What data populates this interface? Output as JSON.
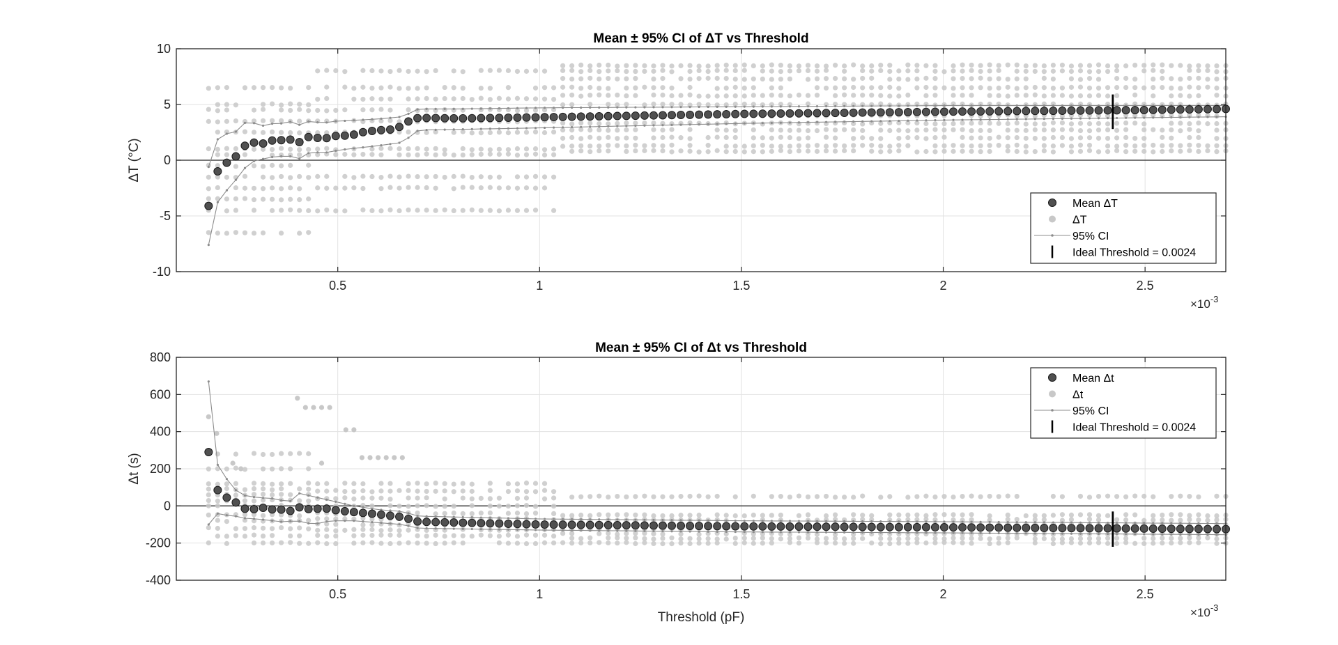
{
  "figure": {
    "background": "#ffffff"
  },
  "colors": {
    "mean_marker": "#505050",
    "mean_edge": "#1a1a1a",
    "scatter": "#c8c8c8",
    "ci_line": "#8c8c8c",
    "ideal_line": "#000000",
    "grid": "#e2e2e2",
    "axis": "#262626",
    "zero_line": "#262626"
  },
  "chart_data": [
    {
      "type": "scatter",
      "title": "Mean ± 95% CI of ΔT vs Threshold",
      "xlabel": "",
      "ylabel": "ΔT (°C)",
      "x_exponent_label": "×10",
      "x_exponent": "-3",
      "xlim": [
        0.1,
        2.7
      ],
      "ylim": [
        -10,
        10
      ],
      "xticks": [
        0.5,
        1,
        1.5,
        2,
        2.5
      ],
      "xtick_labels": [
        "0.5",
        "1",
        "1.5",
        "2",
        "2.5"
      ],
      "yticks": [
        -10,
        -5,
        0,
        5,
        10
      ],
      "ytick_labels": [
        "-10",
        "-5",
        "0",
        "5",
        "10"
      ],
      "grid": true,
      "zero_line": true,
      "legend_position": "bottom-right",
      "legend": [
        {
          "key": "mean",
          "label": "Mean ΔT"
        },
        {
          "key": "scatter",
          "label": "ΔT"
        },
        {
          "key": "ci",
          "label": "95% CI"
        },
        {
          "key": "ideal",
          "label": "Ideal Threshold = 0.0024"
        }
      ],
      "x_start": 0.18,
      "x_step": 0.0225,
      "mean_anchors": [
        [
          0.18,
          -4.1
        ],
        [
          0.2,
          -1.1
        ],
        [
          0.22,
          -0.3
        ],
        [
          0.24,
          0.0
        ],
        [
          0.26,
          0.9
        ],
        [
          0.28,
          1.7
        ],
        [
          0.3,
          1.5
        ],
        [
          0.32,
          1.5
        ],
        [
          0.34,
          1.8
        ],
        [
          0.36,
          1.8
        ],
        [
          0.38,
          1.9
        ],
        [
          0.4,
          1.5
        ],
        [
          0.42,
          2.0
        ],
        [
          0.44,
          2.2
        ],
        [
          0.46,
          1.8
        ],
        [
          0.48,
          2.1
        ],
        [
          0.5,
          2.2
        ],
        [
          0.52,
          2.2
        ],
        [
          0.54,
          2.3
        ],
        [
          0.56,
          2.5
        ],
        [
          0.58,
          2.6
        ],
        [
          0.6,
          2.7
        ],
        [
          0.62,
          2.7
        ],
        [
          0.64,
          2.8
        ],
        [
          0.66,
          3.1
        ],
        [
          0.68,
          3.6
        ],
        [
          0.7,
          3.8
        ],
        [
          0.8,
          3.75
        ],
        [
          1.0,
          3.85
        ],
        [
          1.5,
          4.15
        ],
        [
          2.0,
          4.35
        ],
        [
          2.5,
          4.5
        ],
        [
          2.7,
          4.6
        ]
      ],
      "ci_upper_anchors": [
        [
          0.18,
          -0.6
        ],
        [
          0.2,
          1.8
        ],
        [
          0.22,
          2.4
        ],
        [
          0.24,
          2.3
        ],
        [
          0.26,
          3.0
        ],
        [
          0.28,
          3.7
        ],
        [
          0.3,
          3.1
        ],
        [
          0.32,
          3.1
        ],
        [
          0.34,
          3.3
        ],
        [
          0.36,
          3.3
        ],
        [
          0.38,
          3.5
        ],
        [
          0.4,
          3.1
        ],
        [
          0.42,
          3.4
        ],
        [
          0.44,
          3.6
        ],
        [
          0.46,
          3.2
        ],
        [
          0.48,
          3.5
        ],
        [
          0.5,
          3.5
        ],
        [
          0.6,
          3.7
        ],
        [
          0.66,
          3.9
        ],
        [
          0.7,
          4.6
        ],
        [
          0.8,
          4.6
        ],
        [
          1.0,
          4.7
        ],
        [
          1.5,
          4.8
        ],
        [
          2.0,
          4.9
        ],
        [
          2.7,
          4.9
        ]
      ],
      "ci_lower_anchors": [
        [
          0.18,
          -7.6
        ],
        [
          0.2,
          -3.9
        ],
        [
          0.22,
          -2.9
        ],
        [
          0.24,
          -2.1
        ],
        [
          0.26,
          -1.2
        ],
        [
          0.28,
          -0.2
        ],
        [
          0.3,
          0.0
        ],
        [
          0.34,
          0.3
        ],
        [
          0.38,
          0.4
        ],
        [
          0.4,
          0.0
        ],
        [
          0.42,
          0.6
        ],
        [
          0.44,
          0.7
        ],
        [
          0.48,
          0.7
        ],
        [
          0.5,
          0.9
        ],
        [
          0.6,
          1.3
        ],
        [
          0.66,
          1.6
        ],
        [
          0.7,
          2.7
        ],
        [
          1.0,
          2.9
        ],
        [
          1.5,
          3.3
        ],
        [
          2.0,
          3.6
        ],
        [
          2.7,
          3.9
        ]
      ],
      "scatter_levels_early": [
        -6.5,
        -4.5,
        -3.5,
        -2.5,
        -1.5,
        -0.5,
        0.5,
        1.0,
        2.5,
        3.5,
        4.5,
        5.0,
        6.5
      ],
      "scatter_levels_mid": [
        -4.5,
        -2.5,
        -1.5,
        0.5,
        1.0,
        2.5,
        3.5,
        4.5,
        5.5,
        6.5,
        8.0
      ],
      "scatter_levels_late": [
        0.8,
        1.3,
        2.0,
        2.7,
        3.3,
        4.0,
        5.0,
        5.8,
        6.5,
        7.3,
        8.0,
        8.5
      ],
      "ideal_threshold": {
        "x": 2.42,
        "y_range": [
          2.8,
          5.9
        ]
      }
    },
    {
      "type": "scatter",
      "title": "Mean ± 95% CI of Δt vs Threshold",
      "xlabel": "Threshold (pF)",
      "ylabel": "Δt (s)",
      "x_exponent_label": "×10",
      "x_exponent": "-3",
      "xlim": [
        0.1,
        2.7
      ],
      "ylim": [
        -400,
        800
      ],
      "xticks": [
        0.5,
        1,
        1.5,
        2,
        2.5
      ],
      "xtick_labels": [
        "0.5",
        "1",
        "1.5",
        "2",
        "2.5"
      ],
      "yticks": [
        -400,
        -200,
        0,
        200,
        400,
        600,
        800
      ],
      "ytick_labels": [
        "-400",
        "-200",
        "0",
        "200",
        "400",
        "600",
        "800"
      ],
      "grid": true,
      "zero_line": true,
      "legend_position": "top-right",
      "legend": [
        {
          "key": "mean",
          "label": "Mean Δt"
        },
        {
          "key": "scatter",
          "label": "Δt"
        },
        {
          "key": "ci",
          "label": "95% CI"
        },
        {
          "key": "ideal",
          "label": "Ideal Threshold = 0.0024"
        }
      ],
      "x_start": 0.18,
      "x_step": 0.0225,
      "mean_anchors": [
        [
          0.18,
          290
        ],
        [
          0.2,
          90
        ],
        [
          0.22,
          50
        ],
        [
          0.24,
          30
        ],
        [
          0.26,
          0
        ],
        [
          0.28,
          -30
        ],
        [
          0.3,
          -10
        ],
        [
          0.32,
          -10
        ],
        [
          0.34,
          -20
        ],
        [
          0.36,
          -20
        ],
        [
          0.38,
          -30
        ],
        [
          0.4,
          -5
        ],
        [
          0.42,
          -15
        ],
        [
          0.44,
          -20
        ],
        [
          0.46,
          -10
        ],
        [
          0.5,
          -25
        ],
        [
          0.6,
          -45
        ],
        [
          0.66,
          -60
        ],
        [
          0.7,
          -85
        ],
        [
          0.8,
          -90
        ],
        [
          1.0,
          -100
        ],
        [
          1.5,
          -110
        ],
        [
          2.0,
          -115
        ],
        [
          2.7,
          -125
        ]
      ],
      "ci_upper_anchors": [
        [
          0.18,
          670
        ],
        [
          0.2,
          230
        ],
        [
          0.22,
          160
        ],
        [
          0.24,
          100
        ],
        [
          0.26,
          60
        ],
        [
          0.3,
          45
        ],
        [
          0.34,
          40
        ],
        [
          0.38,
          20
        ],
        [
          0.4,
          70
        ],
        [
          0.44,
          50
        ],
        [
          0.48,
          30
        ],
        [
          0.54,
          0
        ],
        [
          0.6,
          -20
        ],
        [
          0.66,
          -30
        ],
        [
          0.7,
          -55
        ],
        [
          1.0,
          -70
        ],
        [
          1.5,
          -80
        ],
        [
          2.0,
          -85
        ],
        [
          2.7,
          -95
        ]
      ],
      "ci_lower_anchors": [
        [
          0.18,
          -100
        ],
        [
          0.2,
          -40
        ],
        [
          0.22,
          -50
        ],
        [
          0.24,
          -50
        ],
        [
          0.26,
          -65
        ],
        [
          0.3,
          -70
        ],
        [
          0.36,
          -85
        ],
        [
          0.4,
          -80
        ],
        [
          0.44,
          -100
        ],
        [
          0.48,
          -80
        ],
        [
          0.54,
          -80
        ],
        [
          0.6,
          -90
        ],
        [
          0.66,
          -100
        ],
        [
          0.7,
          -120
        ],
        [
          1.0,
          -130
        ],
        [
          1.5,
          -140
        ],
        [
          2.0,
          -145
        ],
        [
          2.7,
          -155
        ]
      ],
      "scatter_levels_early": [
        -200,
        -160,
        -120,
        -80,
        -50,
        0,
        30,
        60,
        90,
        120,
        200,
        280
      ],
      "scatter_levels_mid": [
        -200,
        -160,
        -130,
        -100,
        -70,
        -40,
        0,
        40,
        80,
        120
      ],
      "scatter_levels_late": [
        -200,
        -175,
        -150,
        -125,
        -100,
        -75,
        -50,
        50
      ],
      "scatter_outliers": [
        [
          0.18,
          480
        ],
        [
          0.2,
          390
        ],
        [
          0.4,
          580
        ],
        [
          0.42,
          530
        ],
        [
          0.44,
          530
        ],
        [
          0.46,
          530
        ],
        [
          0.48,
          530
        ],
        [
          0.52,
          410
        ],
        [
          0.54,
          410
        ],
        [
          0.56,
          260
        ],
        [
          0.58,
          260
        ],
        [
          0.6,
          260
        ],
        [
          0.62,
          260
        ],
        [
          0.64,
          260
        ],
        [
          0.66,
          260
        ],
        [
          0.46,
          230
        ],
        [
          0.24,
          230
        ],
        [
          0.26,
          200
        ]
      ],
      "ideal_threshold": {
        "x": 2.42,
        "y_range": [
          -220,
          -30
        ]
      }
    }
  ]
}
